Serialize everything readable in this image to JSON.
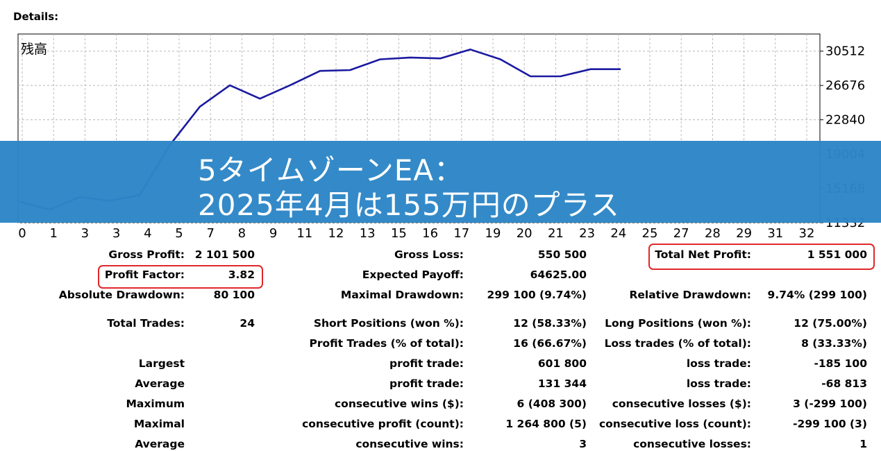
{
  "details_title": "Details:",
  "chart_data": {
    "type": "line",
    "title": "残高",
    "x_ticks": [
      "0",
      "1",
      "3",
      "3",
      "4",
      "5",
      "7",
      "8",
      "9",
      "11",
      "12",
      "13",
      "15",
      "16",
      "17",
      "19",
      "20",
      "21",
      "23",
      "24",
      "25",
      "27",
      "28",
      "29",
      "31",
      "32"
    ],
    "y_ticks": [
      30512,
      26676,
      22840,
      19004,
      15168,
      11332
    ],
    "y_range": [
      11332,
      32430
    ],
    "series": [
      {
        "color": "#1a1aa0",
        "x": [
          0,
          1,
          2,
          3,
          4,
          5,
          6,
          7,
          8,
          9,
          10,
          11,
          12,
          13,
          14,
          15,
          16,
          17,
          18,
          19,
          20
        ],
        "y": [
          13700,
          12800,
          14200,
          13800,
          14400,
          20000,
          24300,
          26700,
          25200,
          26700,
          28300,
          28400,
          29600,
          29800,
          29700,
          30700,
          29600,
          27700,
          27700,
          28500,
          28500
        ]
      }
    ],
    "grid": true,
    "color": "#1a1aa0"
  },
  "banner": {
    "line1": "5タイムゾーンEA：",
    "line2": "2025年4月は155万円のプラス",
    "color": "#2d86c6"
  },
  "stats": {
    "gross_profit_label": "Gross Profit:",
    "gross_profit": "2 101 500",
    "gross_loss_label": "Gross Loss:",
    "gross_loss": "550 500",
    "total_net_profit_label": "Total Net Profit:",
    "total_net_profit": "1 551 000",
    "profit_factor_label": "Profit Factor:",
    "profit_factor": "3.82",
    "expected_payoff_label": "Expected Payoff:",
    "expected_payoff": "64625.00",
    "absolute_drawdown_label": "Absolute Drawdown:",
    "absolute_drawdown": "80 100",
    "maximal_drawdown_label": "Maximal Drawdown:",
    "maximal_drawdown": "299 100 (9.74%)",
    "relative_drawdown_label": "Relative Drawdown:",
    "relative_drawdown": "9.74% (299 100)",
    "total_trades_label": "Total Trades:",
    "total_trades": "24",
    "short_positions_label": "Short Positions (won %):",
    "short_positions": "12 (58.33%)",
    "long_positions_label": "Long Positions (won %):",
    "long_positions": "12 (75.00%)",
    "profit_trades_label": "Profit Trades (% of total):",
    "profit_trades": "16 (66.67%)",
    "loss_trades_label": "Loss trades (% of total):",
    "loss_trades": "8 (33.33%)",
    "largest_label": "Largest",
    "largest_profit_label": "profit trade:",
    "largest_profit": "601 800",
    "largest_loss_label": "loss trade:",
    "largest_loss": "-185 100",
    "average_label": "Average",
    "average_profit_label": "profit trade:",
    "average_profit": "131 344",
    "average_loss_label": "loss trade:",
    "average_loss": "-68 813",
    "maximum_label": "Maximum",
    "max_consec_wins_label": "consecutive wins ($):",
    "max_consec_wins": "6 (408 300)",
    "max_consec_losses_label": "consecutive losses ($):",
    "max_consec_losses": "3 (-299 100)",
    "maximal_label": "Maximal",
    "maximal_consec_profit_label": "consecutive profit (count):",
    "maximal_consec_profit": "1 264 800 (5)",
    "maximal_consec_loss_label": "consecutive loss (count):",
    "maximal_consec_loss": "-299 100 (3)",
    "average2_label": "Average",
    "avg_consec_wins_label": "consecutive wins:",
    "avg_consec_wins": "3",
    "avg_consec_losses_label": "consecutive losses:",
    "avg_consec_losses": "1"
  },
  "highlight_color": "#e0262a"
}
